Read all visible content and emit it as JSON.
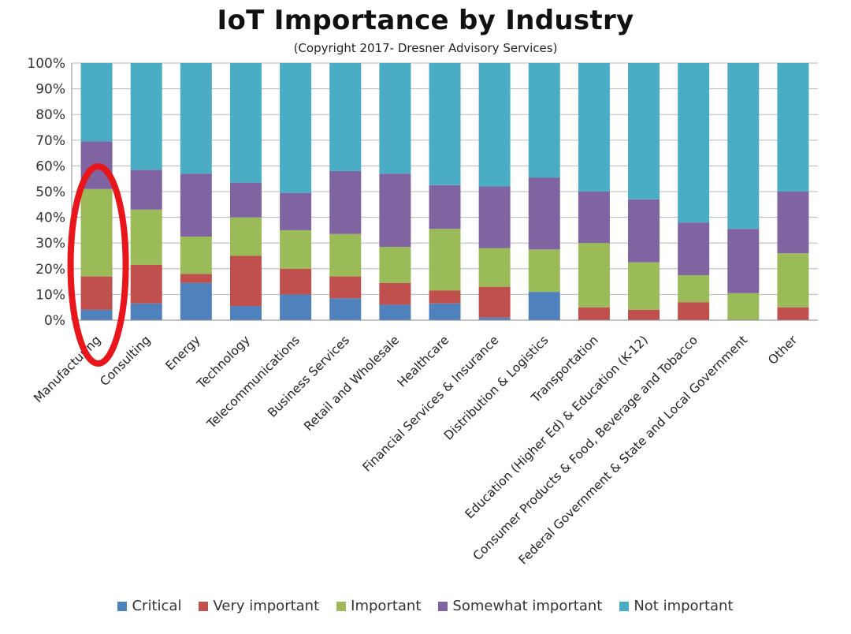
{
  "chart_data": {
    "type": "bar",
    "stacked": true,
    "title": "IoT Importance by Industry",
    "subtitle": "(Copyright 2017- Dresner Advisory Services)",
    "y_ticks": [
      "0%",
      "10%",
      "20%",
      "30%",
      "40%",
      "50%",
      "60%",
      "70%",
      "80%",
      "90%",
      "100%"
    ],
    "ylim": [
      0,
      100
    ],
    "grid": true,
    "legend_position": "bottom",
    "categories": [
      "Manufacturing",
      "Consulting",
      "Energy",
      "Technology",
      "Telecommunications",
      "Business Services",
      "Retail and Wholesale",
      "Healthcare",
      "Financial Services & Insurance",
      "Distribution & Logistics",
      "Transportation",
      "Education (Higher Ed) & Education (K-12)",
      "Consumer Products & Food, Beverage and Tobacco",
      "Federal Government & State and Local Government",
      "Other"
    ],
    "series": [
      {
        "name": "Critical",
        "color": "#4f81bd",
        "values": [
          4,
          6.5,
          14.5,
          5.5,
          10,
          8.5,
          6,
          6.5,
          1,
          11,
          0,
          0,
          0,
          0,
          0
        ]
      },
      {
        "name": "Very important",
        "color": "#c0504d",
        "values": [
          13,
          15,
          3.5,
          19.5,
          10,
          8.5,
          8.5,
          5,
          12,
          0,
          5,
          4,
          7,
          0,
          5
        ]
      },
      {
        "name": "Important",
        "color": "#9bbb59",
        "values": [
          34,
          21.5,
          14.5,
          15,
          15,
          16.5,
          14,
          24,
          15,
          16.5,
          25,
          18.5,
          10.5,
          10.5,
          21
        ]
      },
      {
        "name": "Somewhat important",
        "color": "#8064a2",
        "values": [
          18.5,
          15.5,
          24.5,
          13.5,
          14.5,
          24.5,
          28.5,
          17,
          24,
          28,
          20,
          24.5,
          20.5,
          25,
          24
        ]
      },
      {
        "name": "Not important",
        "color": "#4bacc6",
        "values": [
          30.5,
          41.5,
          43,
          46.5,
          50.5,
          42,
          43,
          47.5,
          48,
          44.5,
          50,
          53,
          62,
          64.5,
          50
        ]
      }
    ],
    "annotation": {
      "type": "ellipse",
      "target": "Manufacturing",
      "color": "#e8161b"
    }
  }
}
